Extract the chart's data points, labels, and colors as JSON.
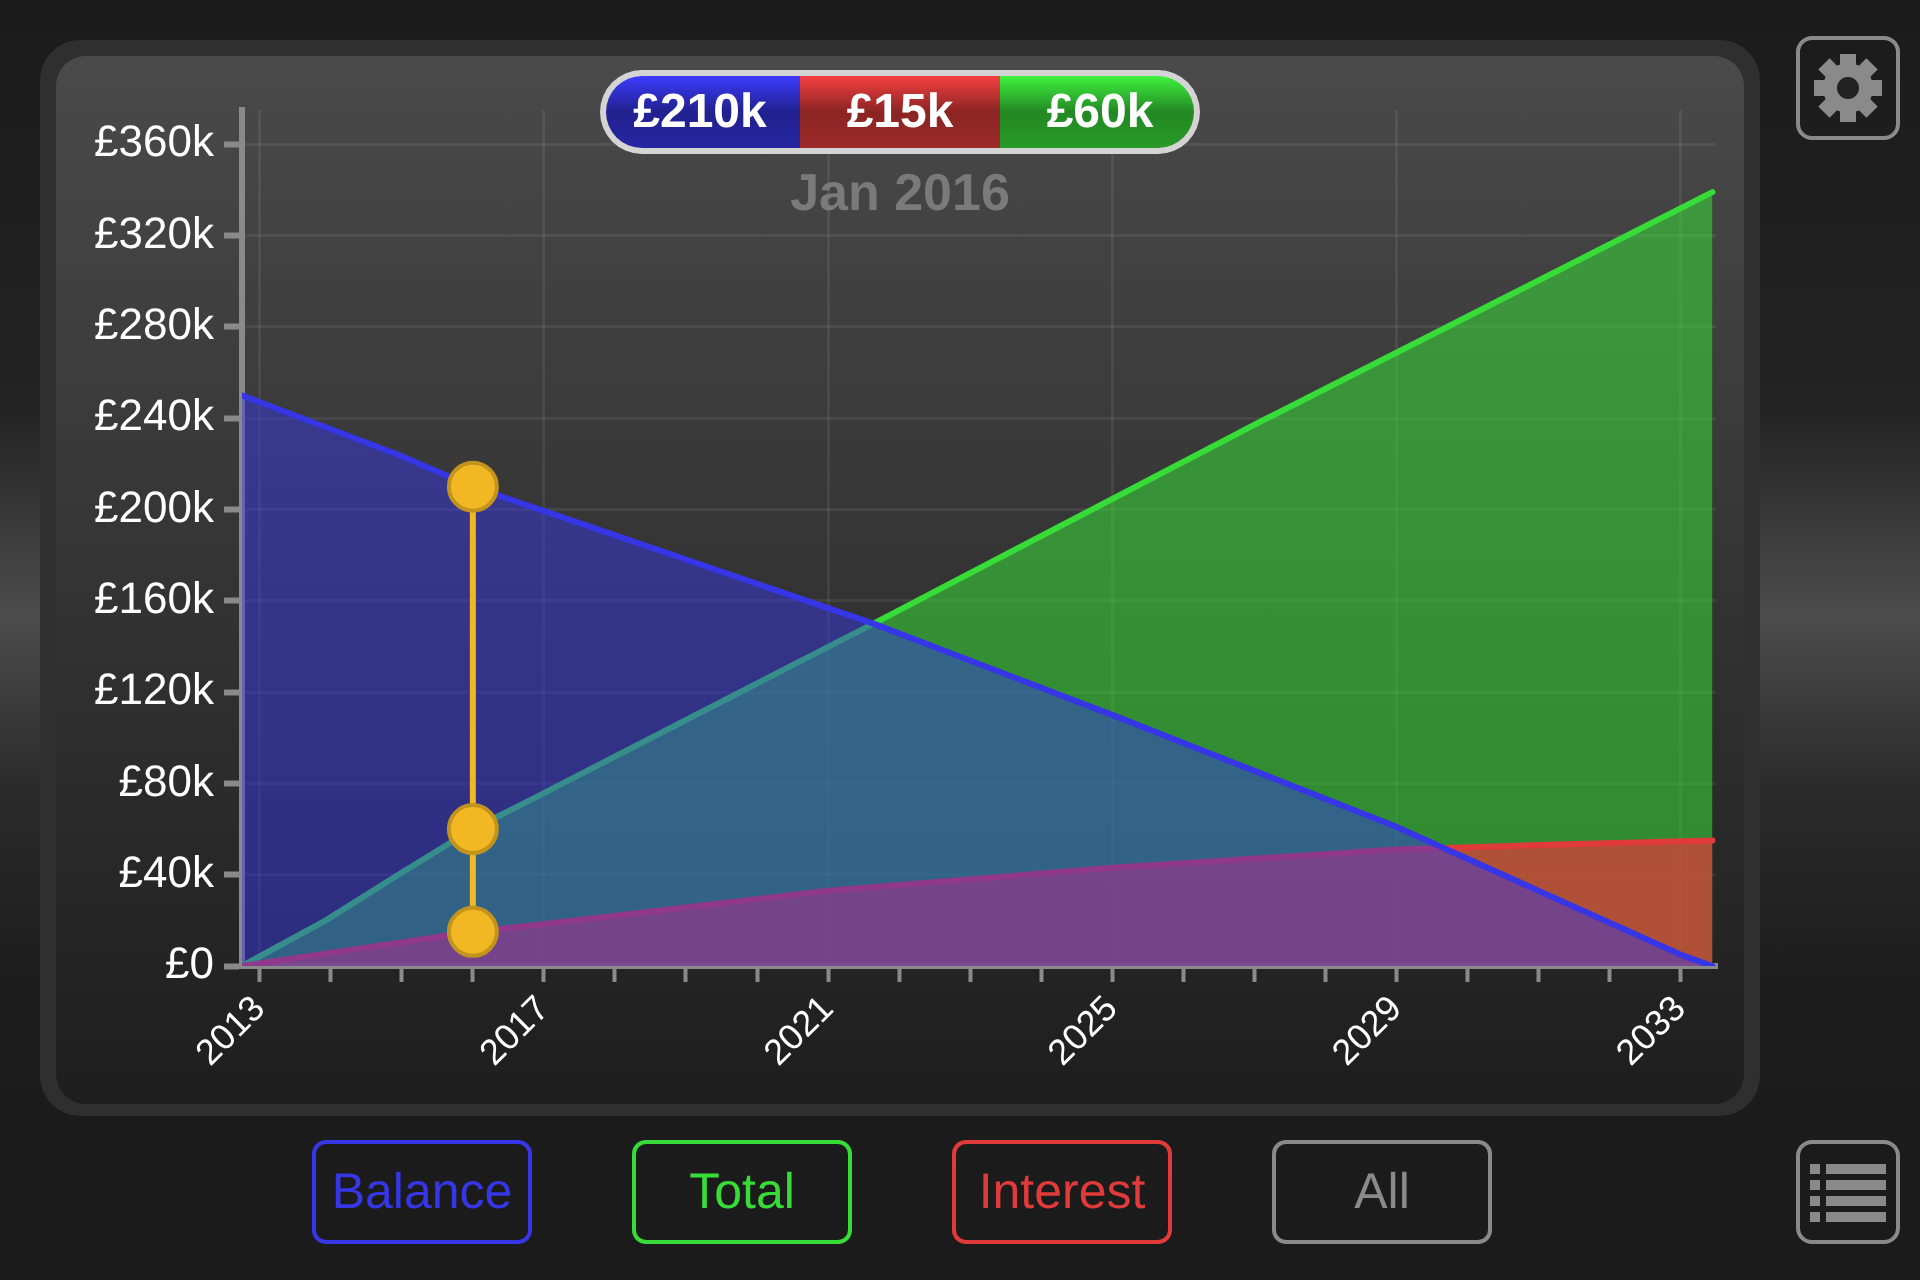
{
  "chart_data": {
    "type": "area",
    "xlim": [
      2012.75,
      2033.5
    ],
    "ylim": [
      0,
      375
    ],
    "xticks": [
      2013,
      {
        "value": 2014,
        "label": null
      },
      {
        "value": 2015,
        "label": null
      },
      {
        "value": 2016,
        "label": null
      },
      2017,
      {
        "value": 2018,
        "label": null
      },
      {
        "value": 2019,
        "label": null
      },
      {
        "value": 2020,
        "label": null
      },
      2021,
      {
        "value": 2022,
        "label": null
      },
      {
        "value": 2023,
        "label": null
      },
      {
        "value": 2024,
        "label": null
      },
      2025,
      {
        "value": 2026,
        "label": null
      },
      {
        "value": 2027,
        "label": null
      },
      {
        "value": 2028,
        "label": null
      },
      2029,
      {
        "value": 2030,
        "label": null
      },
      {
        "value": 2031,
        "label": null
      },
      {
        "value": 2032,
        "label": null
      },
      2033
    ],
    "yticks": [
      {
        "value": 0,
        "label": "£0"
      },
      {
        "value": 40,
        "label": "£40k"
      },
      {
        "value": 80,
        "label": "£80k"
      },
      {
        "value": 120,
        "label": "£120k"
      },
      {
        "value": 160,
        "label": "£160k"
      },
      {
        "value": 200,
        "label": "£200k"
      },
      {
        "value": 240,
        "label": "£240k"
      },
      {
        "value": 280,
        "label": "£280k"
      },
      {
        "value": 320,
        "label": "£320k"
      },
      {
        "value": 360,
        "label": "£360k"
      }
    ],
    "grid": true,
    "legend": "bottom",
    "series": [
      {
        "name": "Balance",
        "color": "#3636e6",
        "x": [
          2012.75,
          2013.93,
          2014.95,
          2016,
          2021.64,
          2025,
          2029,
          2033,
          2033.45
        ],
        "values": [
          250,
          236,
          224,
          210,
          150,
          110,
          61,
          5,
          0
        ]
      },
      {
        "name": "Total",
        "color": "#38dc38",
        "x": [
          2012.75,
          2013.93,
          2014.95,
          2016,
          2016.89,
          2021.64,
          2027.12,
          2033.45
        ],
        "values": [
          0,
          20,
          40,
          60,
          74,
          150,
          239,
          339
        ]
      },
      {
        "name": "Interest",
        "color": "#e03a3a",
        "x": [
          2012.75,
          2016,
          2016.89,
          2021,
          2025,
          2029,
          2031,
          2033.45
        ],
        "values": [
          0,
          15,
          18,
          33,
          43,
          51,
          53,
          55
        ]
      },
      {
        "type": "line",
        "color": "#f2b824",
        "marker": "circle",
        "x": [
          2016,
          2016,
          2016
        ],
        "values": [
          15,
          60,
          210
        ]
      }
    ],
    "annotations": [
      "£210k",
      "£15k",
      "£60k",
      "Jan 2016",
      "All"
    ]
  }
}
